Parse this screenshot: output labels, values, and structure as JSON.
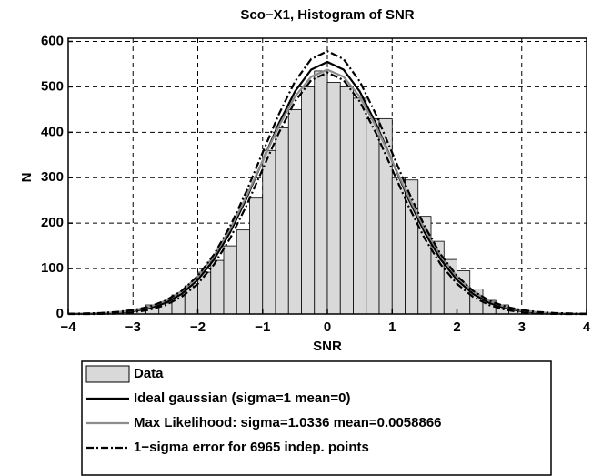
{
  "chart_data": {
    "type": "histogram",
    "title": "Sco−X1, Histogram of SNR",
    "xlabel": "SNR",
    "ylabel": "N",
    "hist_name": "Data",
    "hist_color": "#d9d9d9",
    "bins": [
      -4,
      -3.8,
      -3.6,
      -3.4,
      -3.2,
      -3,
      -2.8,
      -2.6,
      -2.4,
      -2.2,
      -2,
      -1.8,
      -1.6,
      -1.4,
      -1.2,
      -1,
      -0.8,
      -0.6,
      -0.4,
      -0.2,
      0,
      0.2,
      0.4,
      0.6,
      0.8,
      1,
      1.2,
      1.4,
      1.6,
      1.8,
      2,
      2.2,
      2.4,
      2.6,
      2.8,
      3,
      3.2,
      3.4,
      3.6,
      3.8,
      4
    ],
    "counts": [
      0,
      0,
      1,
      2,
      4,
      8,
      20,
      24,
      42,
      62,
      92,
      118,
      150,
      185,
      255,
      360,
      410,
      450,
      500,
      535,
      510,
      500,
      475,
      430,
      430,
      300,
      295,
      215,
      160,
      120,
      95,
      55,
      30,
      20,
      10,
      5,
      3,
      1,
      0,
      0
    ],
    "curves": {
      "x": [
        -4,
        -3.75,
        -3.5,
        -3.25,
        -3,
        -2.75,
        -2.5,
        -2.25,
        -2,
        -1.75,
        -1.5,
        -1.25,
        -1,
        -0.75,
        -0.5,
        -0.25,
        0,
        0.25,
        0.5,
        0.75,
        1,
        1.25,
        1.5,
        1.75,
        2,
        2.25,
        2.5,
        2.75,
        3,
        3.25,
        3.5,
        3.75,
        4
      ],
      "series": [
        {
          "name": "Ideal gaussian (sigma=1 mean=0)",
          "color": "#000000",
          "dash": "solid",
          "values": [
            0.2,
            0.5,
            1.2,
            2.8,
            6.2,
            12.6,
            24.4,
            44.2,
            75.1,
            120,
            180.2,
            254.1,
            336.6,
            418.9,
            489.8,
            537.9,
            555,
            537.9,
            489.8,
            418.9,
            336.6,
            254.1,
            180.2,
            120,
            75.1,
            44.2,
            24.4,
            12.6,
            6.2,
            2.8,
            1.2,
            0.5,
            0.2
          ]
        },
        {
          "name": "Max Likelihood: sigma=1.0336 mean=0.0058866",
          "color": "#8c8c8c",
          "dash": "solid",
          "values": [
            0.3,
            0.7,
            1.7,
            3.8,
            8,
            15.6,
            28.9,
            50.3,
            82.7,
            128.2,
            187.6,
            258.8,
            336.8,
            413.2,
            478.3,
            522.2,
            537.7,
            522.2,
            478.3,
            413.2,
            336.8,
            258.8,
            187.6,
            128.2,
            82.7,
            50.3,
            28.9,
            15.6,
            8,
            3.8,
            1.7,
            0.7,
            0.3
          ]
        },
        {
          "name": "1−sigma error for 6965 indep. points",
          "color": "#000000",
          "dash": "dashdot",
          "values": [
            0.6,
            1.2,
            2.3,
            4.5,
            8.7,
            16.1,
            29.3,
            50.8,
            83.8,
            131,
            193.6,
            270,
            354.9,
            439.4,
            511.9,
            561.1,
            578.6,
            561.1,
            511.9,
            439.4,
            354.9,
            270,
            193.6,
            131,
            83.8,
            50.8,
            29.3,
            16.1,
            8.7,
            4.5,
            2.3,
            1.2,
            0.6
          ],
          "lower": [
            0,
            0,
            0.1,
            1.1,
            3.7,
            9.1,
            19.5,
            37.6,
            66.4,
            109,
            166.8,
            238.2,
            318.3,
            398.4,
            467.7,
            514.7,
            531.4,
            514.7,
            467.7,
            398.4,
            318.3,
            238.2,
            166.8,
            109,
            66.4,
            37.6,
            19.5,
            9.1,
            3.7,
            1.1,
            0.1,
            0,
            0
          ]
        }
      ]
    },
    "xlim": [
      -4,
      4
    ],
    "ylim": [
      0,
      607
    ],
    "xticks": [
      {
        "value": -4,
        "label": "−4"
      },
      {
        "value": -3,
        "label": "−3"
      },
      {
        "value": -2,
        "label": "−2"
      },
      {
        "value": -1,
        "label": "−1"
      },
      0,
      1,
      2,
      3,
      4
    ],
    "yticks": [
      0,
      100,
      200,
      300,
      400,
      500,
      600
    ],
    "grid": true
  }
}
